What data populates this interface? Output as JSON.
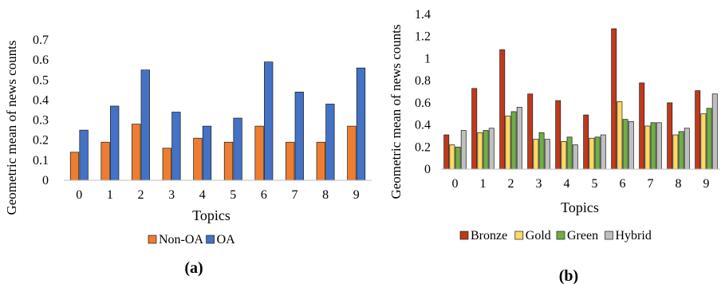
{
  "chart_data": [
    {
      "type": "bar",
      "panel_label": "(a)",
      "xlabel": "Topics",
      "ylabel": "Geometric mean of news counts",
      "ylim": [
        0,
        0.7
      ],
      "yticks": [
        "0",
        "0.1",
        "0.2",
        "0.3",
        "0.4",
        "0.5",
        "0.6",
        "0.7"
      ],
      "categories": [
        "0",
        "1",
        "2",
        "3",
        "4",
        "5",
        "6",
        "7",
        "8",
        "9"
      ],
      "grid": false,
      "legend_position": "bottom",
      "series": [
        {
          "name": "Non-OA",
          "color": "#ED7D31",
          "values": [
            0.14,
            0.19,
            0.28,
            0.16,
            0.21,
            0.19,
            0.27,
            0.19,
            0.19,
            0.27
          ]
        },
        {
          "name": "OA",
          "color": "#4472C4",
          "values": [
            0.25,
            0.37,
            0.55,
            0.34,
            0.27,
            0.31,
            0.59,
            0.44,
            0.38,
            0.56
          ]
        }
      ]
    },
    {
      "type": "bar",
      "panel_label": "(b)",
      "xlabel": "Topics",
      "ylabel": "Geometric mean of news counts",
      "ylim": [
        0,
        1.4
      ],
      "yticks": [
        "0",
        "0.2",
        "0.4",
        "0.6",
        "0.8",
        "1",
        "1.2",
        "1.4"
      ],
      "categories": [
        "0",
        "1",
        "2",
        "3",
        "4",
        "5",
        "6",
        "7",
        "8",
        "9"
      ],
      "grid": false,
      "legend_position": "bottom",
      "series": [
        {
          "name": "Bronze",
          "color": "#C0391A",
          "values": [
            0.31,
            0.73,
            1.08,
            0.68,
            0.62,
            0.49,
            1.27,
            0.78,
            0.6,
            0.71
          ]
        },
        {
          "name": "Gold",
          "color": "#FFD966",
          "values": [
            0.22,
            0.33,
            0.48,
            0.27,
            0.25,
            0.28,
            0.61,
            0.39,
            0.31,
            0.5
          ]
        },
        {
          "name": "Green",
          "color": "#70AD47",
          "values": [
            0.2,
            0.35,
            0.52,
            0.33,
            0.29,
            0.29,
            0.45,
            0.42,
            0.34,
            0.55
          ]
        },
        {
          "name": "Hybrid",
          "color": "#BFBFBF",
          "values": [
            0.35,
            0.37,
            0.56,
            0.27,
            0.22,
            0.31,
            0.43,
            0.42,
            0.37,
            0.68
          ]
        }
      ]
    }
  ]
}
